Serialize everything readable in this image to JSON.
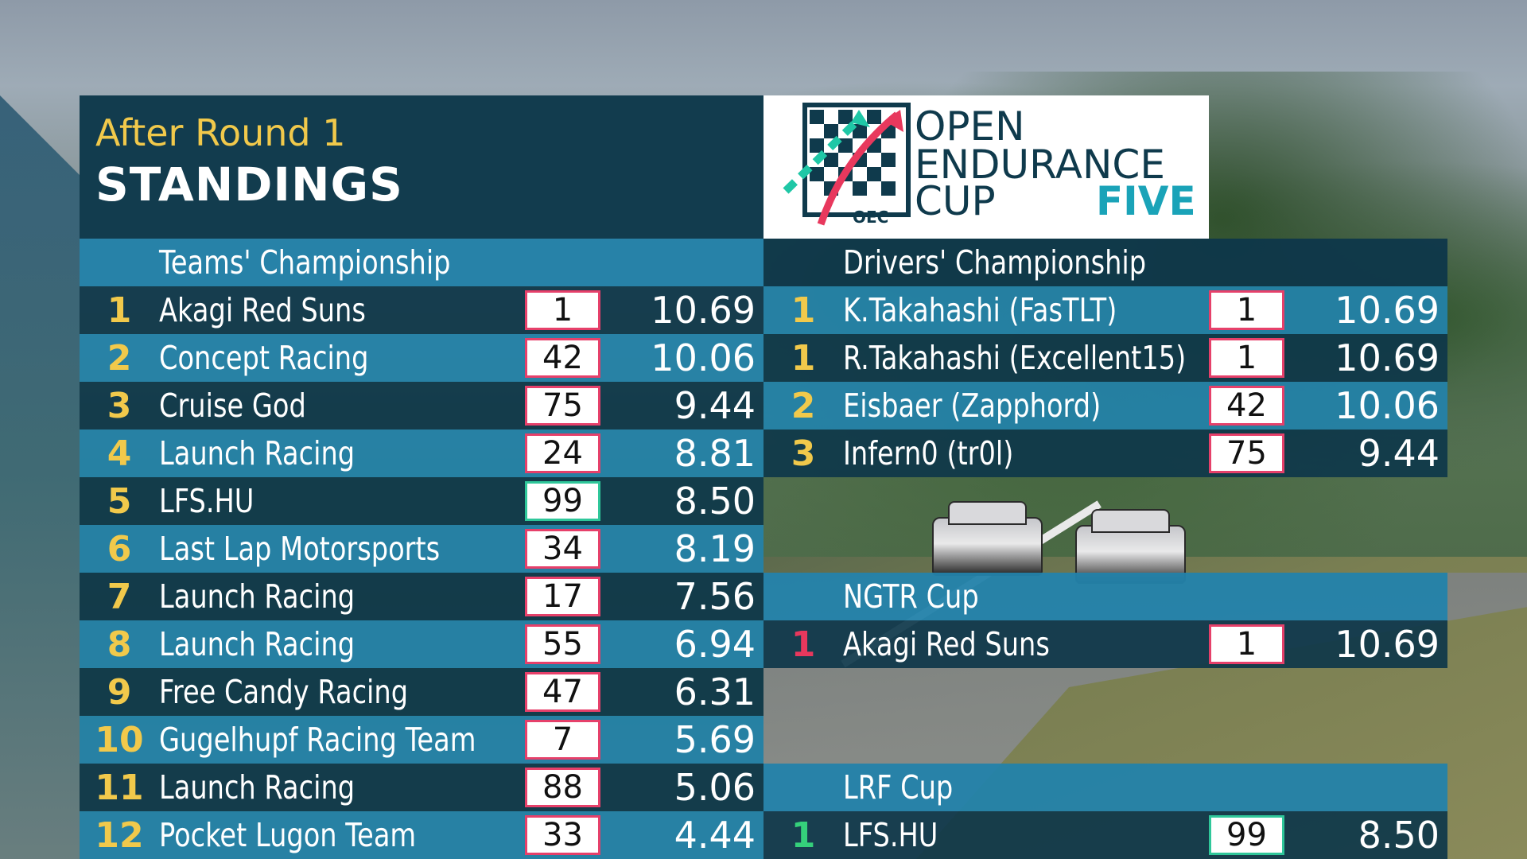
{
  "header": {
    "subtitle": "After Round 1",
    "title": "STANDINGS"
  },
  "logo": {
    "line1": "OPEN",
    "line2": "ENDURANCE",
    "line3": "CUP",
    "line4": "FIVE",
    "badge": "OEC"
  },
  "teams": {
    "title": "Teams' Championship",
    "rows": [
      {
        "pos": "1",
        "name": "Akagi Red Suns",
        "num": "1",
        "pts": "10.69",
        "box": "red"
      },
      {
        "pos": "2",
        "name": "Concept Racing",
        "num": "42",
        "pts": "10.06",
        "box": "red"
      },
      {
        "pos": "3",
        "name": "Cruise God",
        "num": "75",
        "pts": "9.44",
        "box": "red"
      },
      {
        "pos": "4",
        "name": "Launch Racing",
        "num": "24",
        "pts": "8.81",
        "box": "red"
      },
      {
        "pos": "5",
        "name": "LFS.HU",
        "num": "99",
        "pts": "8.50",
        "box": "green"
      },
      {
        "pos": "6",
        "name": "Last Lap Motorsports",
        "num": "34",
        "pts": "8.19",
        "box": "red"
      },
      {
        "pos": "7",
        "name": "Launch Racing",
        "num": "17",
        "pts": "7.56",
        "box": "red"
      },
      {
        "pos": "8",
        "name": "Launch Racing",
        "num": "55",
        "pts": "6.94",
        "box": "red"
      },
      {
        "pos": "9",
        "name": "Free Candy Racing",
        "num": "47",
        "pts": "6.31",
        "box": "red"
      },
      {
        "pos": "10",
        "name": "Gugelhupf Racing Team",
        "num": "7",
        "pts": "5.69",
        "box": "red"
      },
      {
        "pos": "11",
        "name": "Launch Racing",
        "num": "88",
        "pts": "5.06",
        "box": "red"
      },
      {
        "pos": "12",
        "name": "Pocket Lugon Team",
        "num": "33",
        "pts": "4.44",
        "box": "red"
      }
    ]
  },
  "drivers": {
    "title": "Drivers' Championship",
    "rows": [
      {
        "pos": "1",
        "name": "K.Takahashi (FasTLT)",
        "num": "1",
        "pts": "10.69",
        "box": "red"
      },
      {
        "pos": "1",
        "name": "R.Takahashi (Excellent15)",
        "num": "1",
        "pts": "10.69",
        "box": "red"
      },
      {
        "pos": "2",
        "name": "Eisbaer (Zapphord)",
        "num": "42",
        "pts": "10.06",
        "box": "red"
      },
      {
        "pos": "3",
        "name": "Infern0 (tr0l)",
        "num": "75",
        "pts": "9.44",
        "box": "red"
      }
    ]
  },
  "ngtr": {
    "title": "NGTR Cup",
    "rows": [
      {
        "pos": "1",
        "name": "Akagi Red Suns",
        "num": "1",
        "pts": "10.69",
        "box": "red"
      }
    ]
  },
  "lrf": {
    "title": "LRF Cup",
    "rows": [
      {
        "pos": "1",
        "name": "LFS.HU",
        "num": "99",
        "pts": "8.50",
        "box": "green"
      }
    ]
  },
  "colors": {
    "dark_row": "#0e374a",
    "light_row": "#2382aa",
    "gold": "#f1c94b",
    "red": "#e8385d",
    "green": "#35d07b",
    "teal": "#1aa3b8"
  }
}
